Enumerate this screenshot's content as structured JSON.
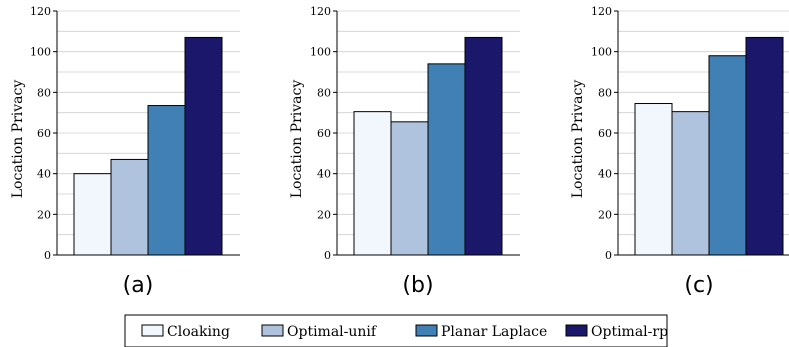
{
  "legend": {
    "items": [
      {
        "label": "Cloaking",
        "color": "#f2f7fd"
      },
      {
        "label": "Optimal-unif",
        "color": "#afc3de"
      },
      {
        "label": "Planar Laplace",
        "color": "#4180b5"
      },
      {
        "label": "Optimal-rp",
        "color": "#1b186b"
      }
    ]
  },
  "chart_data": [
    {
      "type": "bar",
      "panel_label": "(a)",
      "ylabel": "Location Privacy",
      "ylim": [
        0,
        120
      ],
      "yticks": [
        0,
        20,
        40,
        60,
        80,
        100,
        120
      ],
      "grid": true,
      "categories": [
        "Cloaking",
        "Optimal-unif",
        "Planar Laplace",
        "Optimal-rp"
      ],
      "values": [
        40,
        47,
        73.5,
        107
      ]
    },
    {
      "type": "bar",
      "panel_label": "(b)",
      "ylabel": "Location Privacy",
      "ylim": [
        0,
        120
      ],
      "yticks": [
        0,
        20,
        40,
        60,
        80,
        100,
        120
      ],
      "grid": true,
      "categories": [
        "Cloaking",
        "Optimal-unif",
        "Planar Laplace",
        "Optimal-rp"
      ],
      "values": [
        70.5,
        65.5,
        94,
        107
      ]
    },
    {
      "type": "bar",
      "panel_label": "(c)",
      "ylabel": "Location Privacy",
      "ylim": [
        0,
        120
      ],
      "yticks": [
        0,
        20,
        40,
        60,
        80,
        100,
        120
      ],
      "grid": true,
      "categories": [
        "Cloaking",
        "Optimal-unif",
        "Planar Laplace",
        "Optimal-rp"
      ],
      "values": [
        74.5,
        70.5,
        98,
        107
      ]
    }
  ]
}
